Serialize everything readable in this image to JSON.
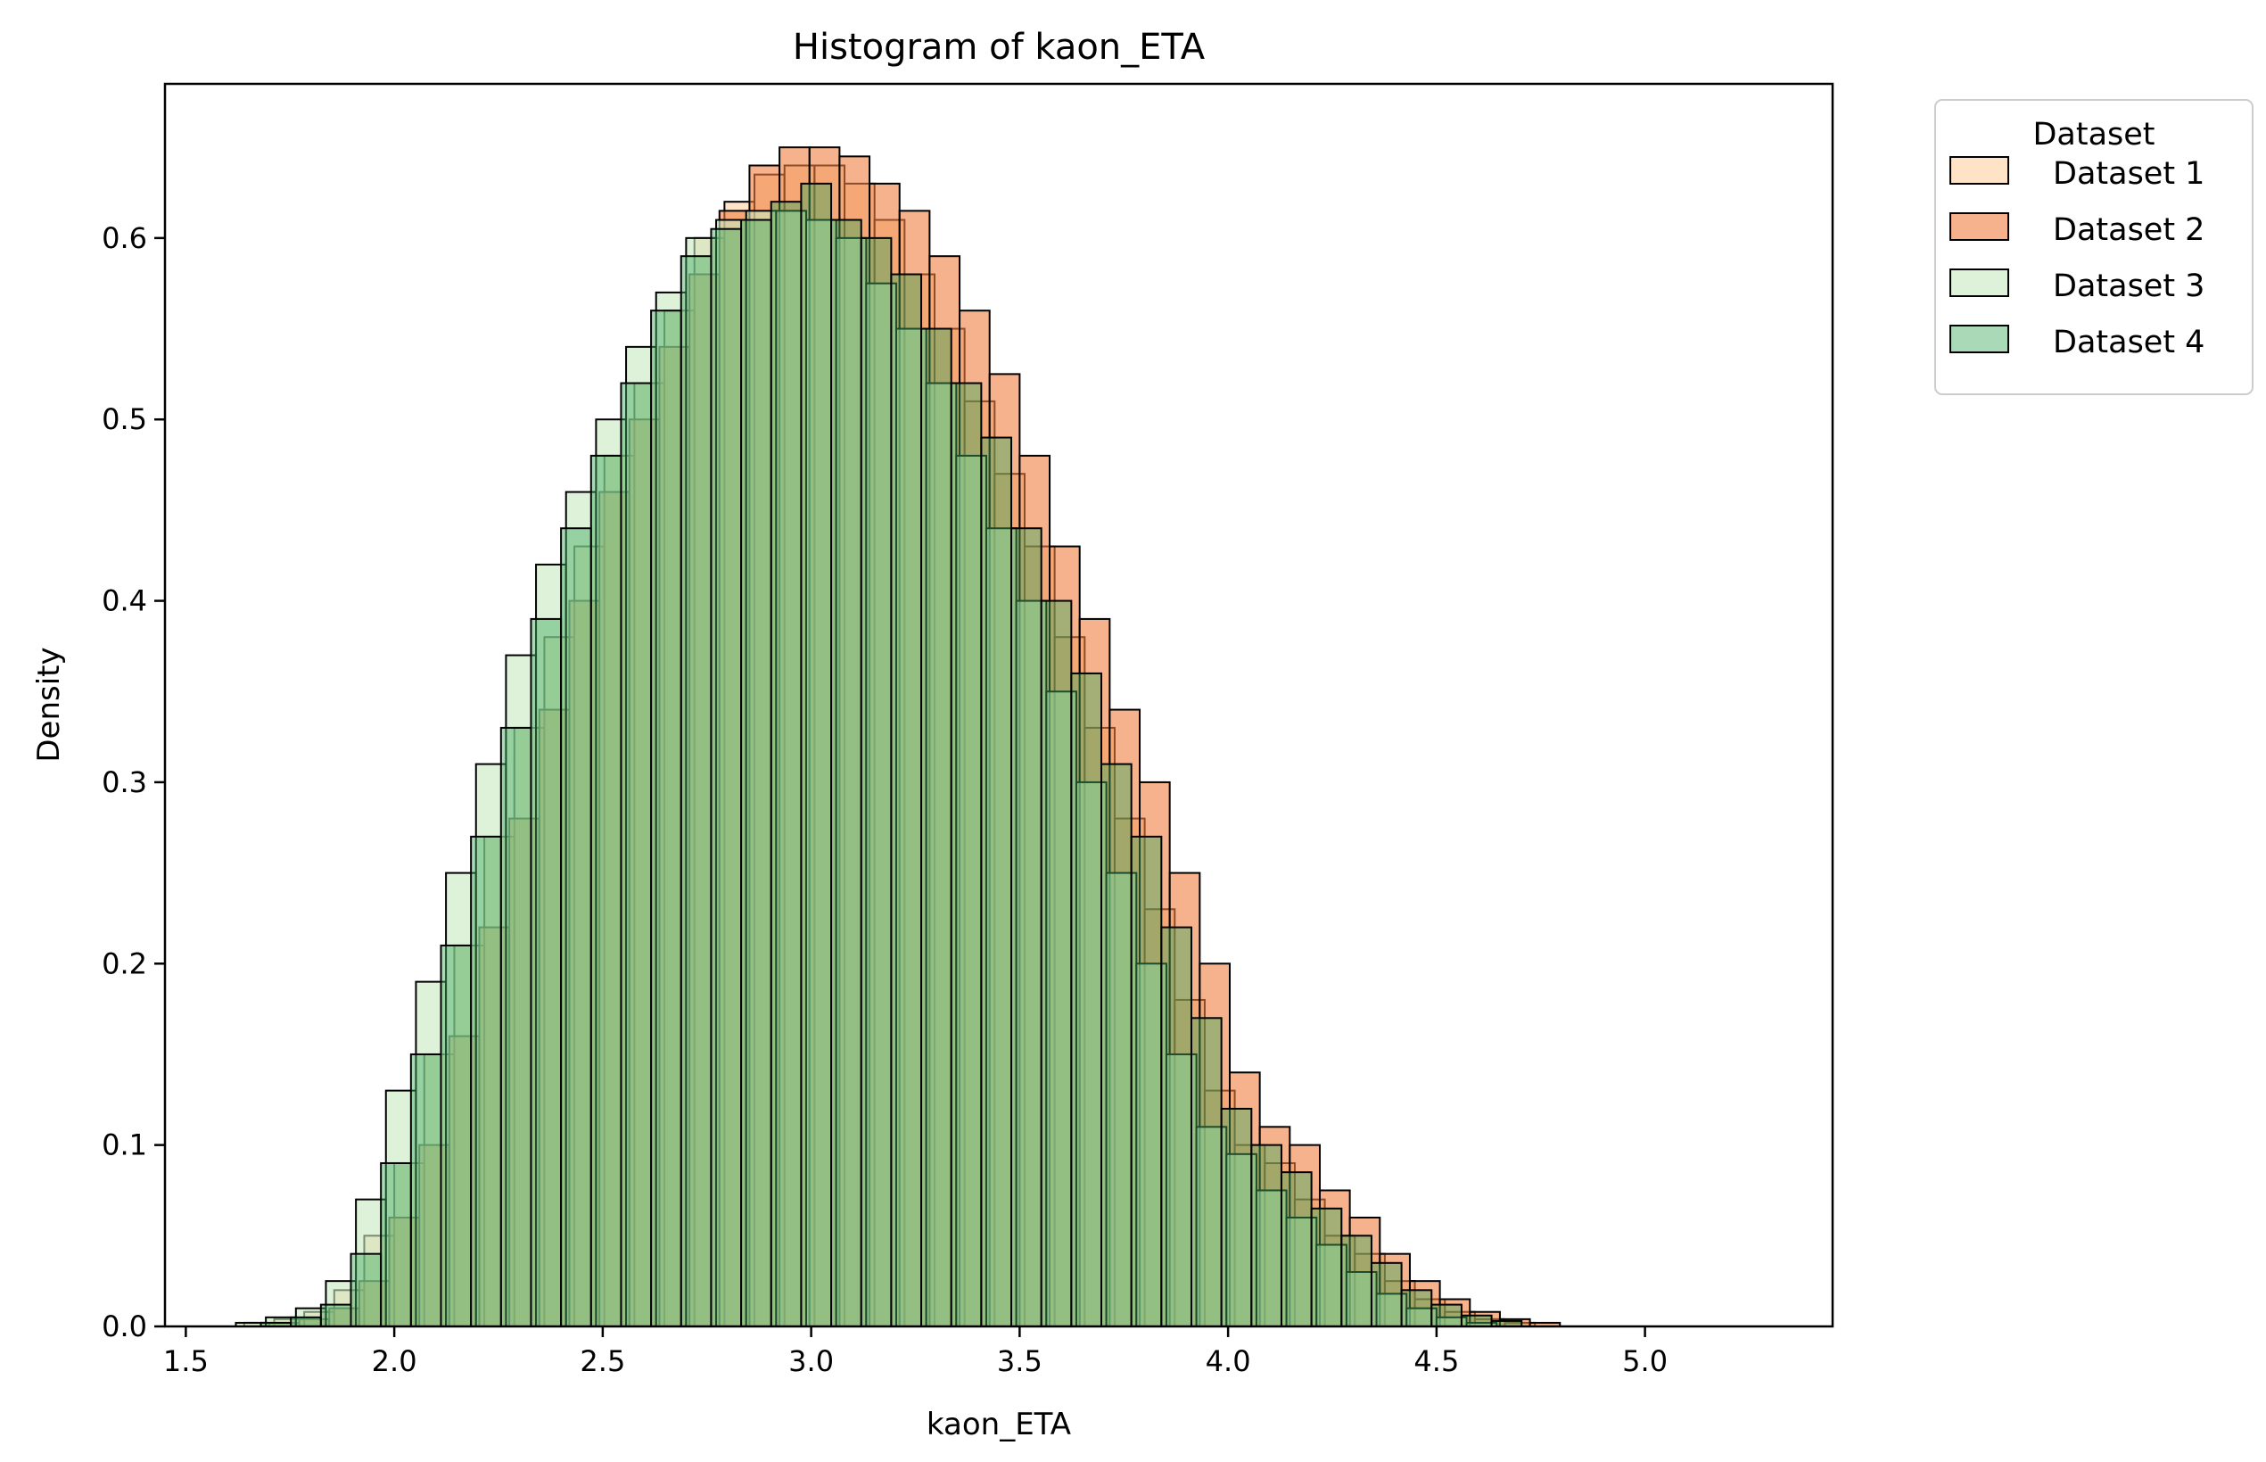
{
  "chart_data": {
    "type": "bar",
    "title": "Histogram of kaon_ETA",
    "xlabel": "kaon_ETA",
    "ylabel": "Density",
    "xlim": [
      1.45,
      5.45
    ],
    "ylim": [
      0,
      0.685
    ],
    "xticks": [
      "1.5",
      "2.0",
      "2.5",
      "3.0",
      "3.5",
      "4.0",
      "4.5",
      "5.0"
    ],
    "xtick_values": [
      1.5,
      2.0,
      2.5,
      3.0,
      3.5,
      4.0,
      4.5,
      5.0
    ],
    "yticks": [
      "0.0",
      "0.1",
      "0.2",
      "0.3",
      "0.4",
      "0.5",
      "0.6"
    ],
    "ytick_values": [
      0.0,
      0.1,
      0.2,
      0.3,
      0.4,
      0.5,
      0.6
    ],
    "grid": false,
    "bin_width": 0.072,
    "legend": {
      "title": "Dataset",
      "placement": "outside-top-right"
    },
    "series": [
      {
        "name": "Dataset 1",
        "color": "#fdd0a2",
        "alpha": 0.6,
        "bin_start": 1.64,
        "values": [
          0.002,
          0.004,
          0.008,
          0.02,
          0.05,
          0.09,
          0.15,
          0.21,
          0.27,
          0.33,
          0.38,
          0.43,
          0.48,
          0.52,
          0.56,
          0.6,
          0.62,
          0.635,
          0.64,
          0.64,
          0.63,
          0.61,
          0.58,
          0.55,
          0.51,
          0.47,
          0.43,
          0.38,
          0.33,
          0.28,
          0.23,
          0.18,
          0.13,
          0.1,
          0.09,
          0.07,
          0.05,
          0.04,
          0.025,
          0.015,
          0.008,
          0.004,
          0.002
        ]
      },
      {
        "name": "Dataset 2",
        "color": "#ee7f3f",
        "alpha": 0.6,
        "bin_start": 1.7,
        "values": [
          0.002,
          0.004,
          0.01,
          0.025,
          0.06,
          0.1,
          0.16,
          0.22,
          0.28,
          0.34,
          0.4,
          0.46,
          0.5,
          0.54,
          0.58,
          0.615,
          0.64,
          0.65,
          0.65,
          0.645,
          0.63,
          0.615,
          0.59,
          0.56,
          0.525,
          0.48,
          0.43,
          0.39,
          0.34,
          0.3,
          0.25,
          0.2,
          0.14,
          0.11,
          0.1,
          0.075,
          0.06,
          0.04,
          0.025,
          0.015,
          0.008,
          0.004,
          0.002
        ]
      },
      {
        "name": "Dataset 3",
        "color": "#c7e9c0",
        "alpha": 0.6,
        "bin_start": 1.62,
        "values": [
          0.002,
          0.005,
          0.01,
          0.025,
          0.07,
          0.13,
          0.19,
          0.25,
          0.31,
          0.37,
          0.42,
          0.46,
          0.5,
          0.54,
          0.57,
          0.6,
          0.61,
          0.615,
          0.615,
          0.61,
          0.6,
          0.575,
          0.55,
          0.52,
          0.48,
          0.44,
          0.4,
          0.35,
          0.3,
          0.25,
          0.2,
          0.15,
          0.11,
          0.095,
          0.075,
          0.06,
          0.045,
          0.03,
          0.018,
          0.01,
          0.005,
          0.002
        ]
      },
      {
        "name": "Dataset 4",
        "color": "#41ab5d",
        "alpha": 0.45,
        "bin_start": 1.68,
        "values": [
          0.002,
          0.005,
          0.012,
          0.04,
          0.09,
          0.15,
          0.21,
          0.27,
          0.33,
          0.39,
          0.44,
          0.48,
          0.52,
          0.56,
          0.59,
          0.605,
          0.61,
          0.62,
          0.63,
          0.61,
          0.6,
          0.58,
          0.55,
          0.52,
          0.49,
          0.44,
          0.4,
          0.36,
          0.31,
          0.27,
          0.22,
          0.17,
          0.12,
          0.1,
          0.085,
          0.065,
          0.05,
          0.035,
          0.02,
          0.012,
          0.006,
          0.003
        ]
      }
    ]
  }
}
